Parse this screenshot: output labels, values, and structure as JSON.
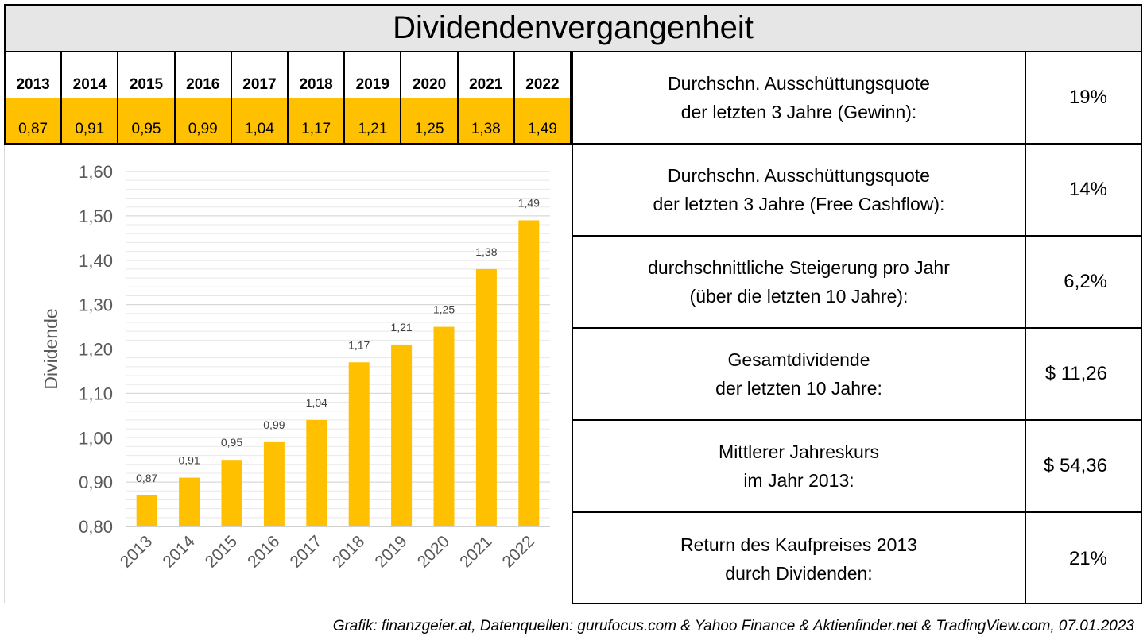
{
  "title": "Dividendenvergangenheit",
  "year_table": [
    {
      "year": "2013",
      "value": "0,87"
    },
    {
      "year": "2014",
      "value": "0,91"
    },
    {
      "year": "2015",
      "value": "0,95"
    },
    {
      "year": "2016",
      "value": "0,99"
    },
    {
      "year": "2017",
      "value": "1,04"
    },
    {
      "year": "2018",
      "value": "1,17"
    },
    {
      "year": "2019",
      "value": "1,21"
    },
    {
      "year": "2020",
      "value": "1,25"
    },
    {
      "year": "2021",
      "value": "1,38"
    },
    {
      "year": "2022",
      "value": "1,49"
    }
  ],
  "stats": [
    {
      "label": "Durchschn. Ausschüttungsquote\nder letzten 3 Jahre (Gewinn):",
      "value": "19%"
    },
    {
      "label": "Durchschn. Ausschüttungsquote\nder letzten 3 Jahre (Free Cashflow):",
      "value": "14%"
    },
    {
      "label": "durchschnittliche Steigerung pro Jahr\n(über die letzten 10 Jahre):",
      "value": "6,2%"
    },
    {
      "label": "Gesamtdividende\nder letzten 10 Jahre:",
      "value": "$ 11,26"
    },
    {
      "label": "Mittlerer Jahreskurs\nim Jahr 2013:",
      "value": "$ 54,36"
    },
    {
      "label": "Return des Kaufpreises 2013\ndurch Dividenden:",
      "value": "21%"
    }
  ],
  "footer": "Grafik: finanzgeier.at, Datenquellen: gurufocus.com & Yahoo Finance & Aktienfinder.net & TradingView.com, 07.01.2023",
  "chart_data": {
    "type": "bar",
    "categories": [
      "2013",
      "2014",
      "2015",
      "2016",
      "2017",
      "2018",
      "2019",
      "2020",
      "2021",
      "2022"
    ],
    "values": [
      0.87,
      0.91,
      0.95,
      0.99,
      1.04,
      1.17,
      1.21,
      1.25,
      1.38,
      1.49
    ],
    "data_labels": [
      "0,87",
      "0,91",
      "0,95",
      "0,99",
      "1,04",
      "1,17",
      "1,21",
      "1,25",
      "1,38",
      "1,49"
    ],
    "ylabel": "Dividende",
    "ylim": [
      0.8,
      1.6
    ],
    "yticks": [
      0.8,
      0.9,
      1.0,
      1.1,
      1.2,
      1.3,
      1.4,
      1.5,
      1.6
    ],
    "ytick_labels": [
      "0,80",
      "0,90",
      "1,00",
      "1,10",
      "1,20",
      "1,30",
      "1,40",
      "1,50",
      "1,60"
    ],
    "bar_color": "#ffc000",
    "grid": true
  }
}
